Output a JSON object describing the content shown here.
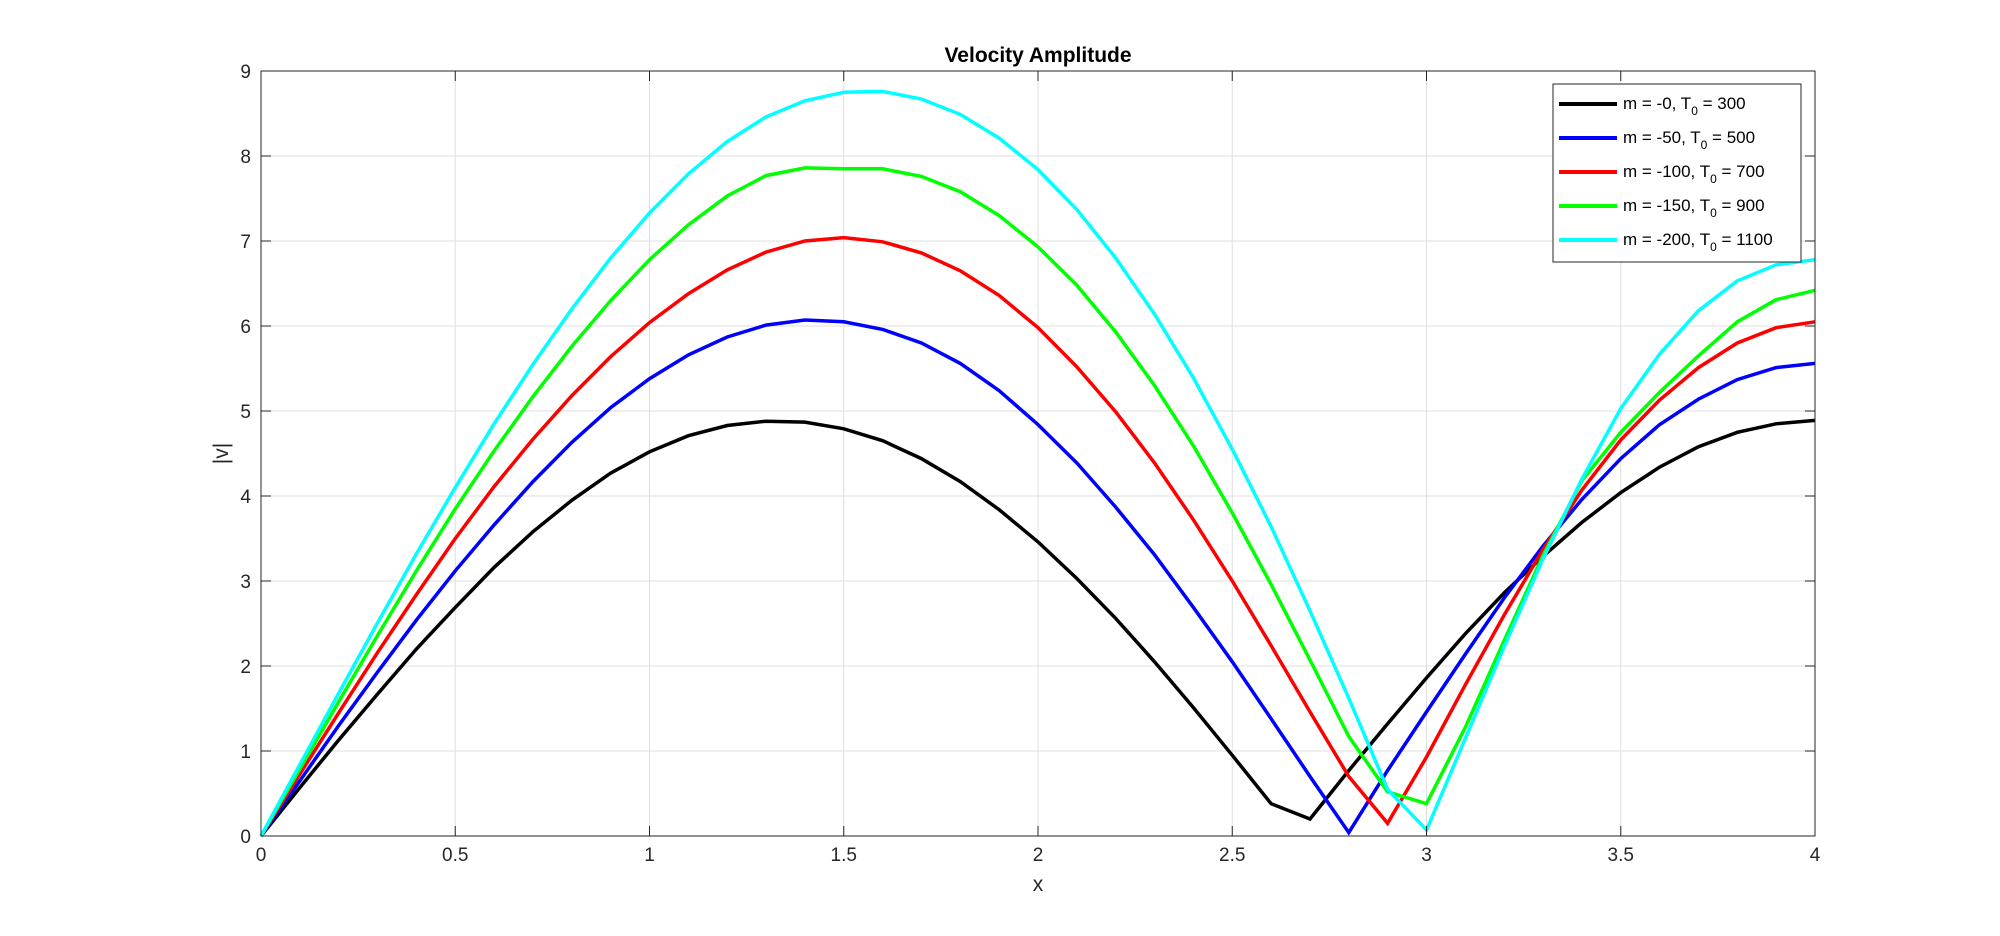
{
  "chart_data": {
    "type": "line",
    "title": "Velocity Amplitude",
    "xlabel": "x",
    "ylabel": "|v|",
    "xlim": [
      0,
      4
    ],
    "ylim": [
      0,
      9
    ],
    "xticks": [
      "0",
      "0.5",
      "1",
      "1.5",
      "2",
      "2.5",
      "3",
      "3.5",
      "4"
    ],
    "yticks": [
      "0",
      "1",
      "2",
      "3",
      "4",
      "5",
      "6",
      "7",
      "8",
      "9"
    ],
    "grid": true,
    "legend_position": "top-right",
    "x": [
      0,
      0.1,
      0.2,
      0.3,
      0.4,
      0.5,
      0.6,
      0.7,
      0.8,
      0.9,
      1.0,
      1.1,
      1.2,
      1.3,
      1.4,
      1.5,
      1.6,
      1.7,
      1.8,
      1.9,
      2.0,
      2.1,
      2.2,
      2.3,
      2.4,
      2.5,
      2.6,
      2.7,
      2.8,
      2.9,
      3.0,
      3.1,
      3.2,
      3.3,
      3.4,
      3.5,
      3.6,
      3.7,
      3.8,
      3.9,
      4.0
    ],
    "series": [
      {
        "legend_main": "m = -0, T",
        "legend_sub": "0",
        "legend_tail": " = 300",
        "color": "#000000",
        "values": [
          0,
          0.57,
          1.13,
          1.67,
          2.2,
          2.69,
          3.16,
          3.58,
          3.95,
          4.27,
          4.52,
          4.71,
          4.83,
          4.88,
          4.87,
          4.79,
          4.65,
          4.44,
          4.17,
          3.84,
          3.46,
          3.03,
          2.56,
          2.05,
          1.51,
          0.95,
          0.38,
          0.2,
          0.77,
          1.32,
          1.86,
          2.38,
          2.86,
          3.29,
          3.69,
          4.04,
          4.34,
          4.58,
          4.75,
          4.85,
          4.89
        ]
      },
      {
        "legend_main": "m = -50, T",
        "legend_sub": "0",
        "legend_tail": " = 500",
        "color": "#0000ff",
        "values": [
          0,
          0.65,
          1.3,
          1.93,
          2.54,
          3.12,
          3.66,
          4.17,
          4.63,
          5.04,
          5.38,
          5.66,
          5.87,
          6.01,
          6.07,
          6.05,
          5.96,
          5.8,
          5.56,
          5.24,
          4.84,
          4.39,
          3.87,
          3.31,
          2.69,
          2.05,
          1.38,
          0.7,
          0.04,
          0.77,
          1.46,
          2.14,
          2.8,
          3.41,
          3.96,
          4.44,
          4.84,
          5.14,
          5.37,
          5.51,
          5.56
        ]
      },
      {
        "legend_main": "m = -100, T",
        "legend_sub": "0",
        "legend_tail": " = 700",
        "color": "#ff0000",
        "values": [
          0,
          0.73,
          1.45,
          2.16,
          2.84,
          3.5,
          4.11,
          4.67,
          5.18,
          5.64,
          6.04,
          6.38,
          6.66,
          6.87,
          7.0,
          7.04,
          6.99,
          6.86,
          6.65,
          6.36,
          5.98,
          5.52,
          4.99,
          4.39,
          3.72,
          3.0,
          2.24,
          1.46,
          0.7,
          0.15,
          0.93,
          1.78,
          2.6,
          3.37,
          4.07,
          4.66,
          5.13,
          5.51,
          5.8,
          5.98,
          6.05
        ]
      },
      {
        "legend_main": "m = -150, T",
        "legend_sub": "0",
        "legend_tail": " = 900",
        "color": "#00ff00",
        "values": [
          0,
          0.79,
          1.58,
          2.36,
          3.12,
          3.85,
          4.53,
          5.17,
          5.76,
          6.3,
          6.78,
          7.19,
          7.53,
          7.77,
          7.86,
          7.85,
          7.85,
          7.76,
          7.58,
          7.3,
          6.93,
          6.48,
          5.93,
          5.3,
          4.59,
          3.8,
          2.96,
          2.07,
          1.17,
          0.52,
          0.38,
          1.28,
          2.3,
          3.3,
          4.18,
          4.75,
          5.22,
          5.65,
          6.05,
          6.31,
          6.42
        ]
      },
      {
        "legend_main": "m = -200, T",
        "legend_sub": "0",
        "legend_tail": " = 1100",
        "color": "#00ffff",
        "values": [
          0,
          0.84,
          1.68,
          2.51,
          3.32,
          4.1,
          4.85,
          5.55,
          6.2,
          6.8,
          7.33,
          7.79,
          8.17,
          8.46,
          8.65,
          8.75,
          8.76,
          8.67,
          8.49,
          8.21,
          7.84,
          7.37,
          6.8,
          6.14,
          5.39,
          4.55,
          3.64,
          2.65,
          1.62,
          0.55,
          0.07,
          1.15,
          2.23,
          3.26,
          4.2,
          5.03,
          5.67,
          6.18,
          6.53,
          6.72,
          6.78
        ]
      }
    ]
  }
}
